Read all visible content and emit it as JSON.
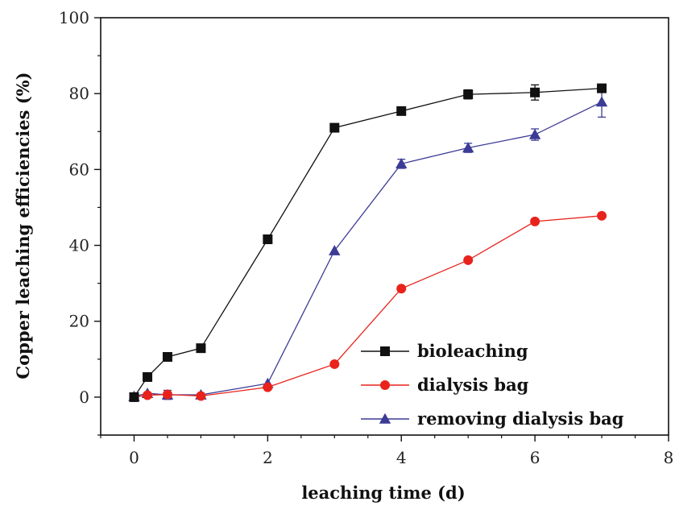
{
  "chart_data": {
    "type": "line",
    "xlabel": "leaching time (d)",
    "ylabel": "Copper leaching efficiencies (%)",
    "xlim": [
      -0.5,
      8
    ],
    "ylim": [
      -10,
      100
    ],
    "xticks": [
      0,
      2,
      4,
      6,
      8
    ],
    "yticks": [
      0,
      20,
      40,
      60,
      80,
      100
    ],
    "x_tick_labels": [
      "0",
      "2",
      "4",
      "6",
      "8"
    ],
    "y_tick_labels": [
      "0",
      "20",
      "40",
      "60",
      "80",
      "100"
    ],
    "grid": false,
    "legend_position": "bottom-right",
    "series": [
      {
        "name": "bioleaching",
        "color": "#111111",
        "marker": "square",
        "x": [
          0,
          0.2,
          0.5,
          1,
          2,
          3,
          4,
          5,
          6,
          7
        ],
        "y": [
          0,
          5.3,
          10.6,
          12.9,
          41.6,
          71.0,
          75.4,
          79.8,
          80.3,
          81.4
        ],
        "error": [
          0,
          0,
          0,
          0,
          0,
          0,
          0,
          1.2,
          2.0,
          1.0
        ]
      },
      {
        "name": "dialysis bag",
        "color": "#e8231c",
        "marker": "circle",
        "x": [
          0,
          0.2,
          0.5,
          1,
          2,
          3,
          4,
          5,
          6,
          7
        ],
        "y": [
          0,
          0.5,
          0.7,
          0.3,
          2.6,
          8.7,
          28.6,
          36.1,
          46.3,
          47.8
        ],
        "error": [
          0,
          0,
          0,
          0,
          0,
          0,
          0,
          0,
          0,
          0
        ]
      },
      {
        "name": "removing dialysis bag",
        "color": "#3c3c96",
        "marker": "triangle",
        "x": [
          0,
          0.2,
          0.5,
          1,
          2,
          3,
          4,
          5,
          6,
          7
        ],
        "y": [
          0.2,
          1.0,
          0.6,
          0.6,
          3.6,
          38.6,
          61.5,
          65.7,
          69.2,
          77.8
        ],
        "error": [
          0,
          0,
          1.2,
          0,
          0,
          0,
          1.2,
          1.2,
          1.5,
          4.0
        ]
      }
    ]
  }
}
